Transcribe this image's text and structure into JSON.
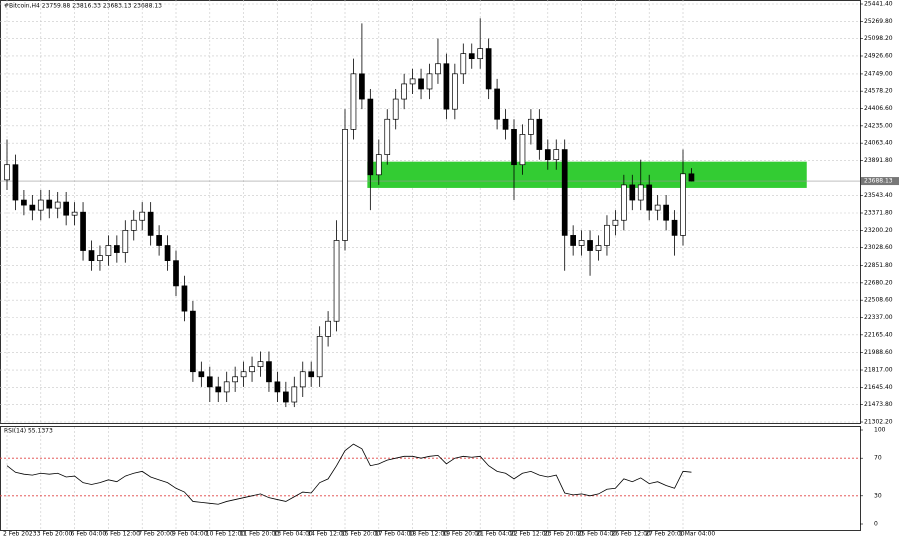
{
  "chart_data": [
    {
      "type": "candlestick",
      "title": "#Bitcoin,H4  23759.88 23816.33 23683.13 23688.13",
      "categories": [
        "2 Feb 2023",
        null,
        null,
        null,
        "3 Feb 20:00",
        null,
        null,
        null,
        "6 Feb 04:00",
        null,
        null,
        null,
        "6 Feb 12:00",
        null,
        null,
        null,
        "7 Feb 20:00",
        null,
        null,
        null,
        "9 Feb 04:00",
        null,
        null,
        null,
        "10 Feb 12:00",
        null,
        null,
        null,
        "11 Feb 20:00",
        null,
        null,
        null,
        "13 Feb 04:00",
        null,
        null,
        null,
        "14 Feb 12:00",
        null,
        null,
        null,
        "15 Feb 20:00",
        null,
        null,
        null,
        "17 Feb 04:00",
        null,
        null,
        null,
        "18 Feb 12:00",
        null,
        null,
        null,
        "19 Feb 20:00",
        null,
        null,
        null,
        "21 Feb 04:00",
        null,
        null,
        null,
        "22 Feb 12:00",
        null,
        null,
        null,
        "23 Feb 20:00",
        null,
        null,
        null,
        "25 Feb 04:00",
        null,
        null,
        null,
        "26 Feb 12:00",
        null,
        null,
        null,
        "27 Feb 20:00",
        null,
        null,
        null,
        "1 Mar 04:00",
        null
      ],
      "open": [
        23700,
        23850,
        23500,
        23450,
        23400,
        23500,
        23420,
        23480,
        23350,
        23380,
        23000,
        22900,
        22950,
        23050,
        22980,
        23200,
        23300,
        23380,
        23150,
        23050,
        22900,
        22650,
        22400,
        21800,
        21750,
        21650,
        21600,
        21700,
        21750,
        21800,
        21850,
        21900,
        21700,
        21600,
        21500,
        21650,
        21800,
        21750,
        22150,
        22300,
        23100,
        24200,
        24750,
        24500,
        23750,
        23950,
        24300,
        24500,
        24650,
        24700,
        24600,
        24750,
        24850,
        24400,
        24750,
        24950,
        24900,
        25000,
        24600,
        24300,
        24200,
        23850,
        24150,
        24300,
        24000,
        23900,
        24000,
        23150,
        23050,
        23100,
        23000,
        23050,
        23250,
        23300,
        23650,
        23500,
        23650,
        23400,
        23450,
        23300,
        23150,
        23759.88
      ],
      "high": [
        24100,
        23950,
        23600,
        23550,
        23600,
        23600,
        23580,
        23580,
        23480,
        23480,
        23100,
        23050,
        23150,
        23150,
        23300,
        23400,
        23480,
        23480,
        23250,
        23150,
        23000,
        22750,
        22500,
        21900,
        21850,
        21750,
        21800,
        21850,
        21900,
        21950,
        22000,
        22000,
        21800,
        21700,
        21750,
        21900,
        21900,
        22250,
        22400,
        23300,
        24400,
        24900,
        25250,
        24600,
        24100,
        24400,
        24600,
        24750,
        24800,
        24800,
        24850,
        25100,
        24950,
        24850,
        25050,
        25050,
        25300,
        25100,
        24700,
        24400,
        24300,
        24250,
        24400,
        24400,
        24100,
        24100,
        24100,
        23250,
        23200,
        23200,
        23150,
        23350,
        23400,
        23750,
        23750,
        23900,
        23750,
        23550,
        23550,
        23400,
        24000,
        23816.33
      ],
      "low": [
        23600,
        23400,
        23350,
        23300,
        23300,
        23320,
        23320,
        23250,
        23250,
        22900,
        22800,
        22800,
        22850,
        22880,
        22880,
        23100,
        23200,
        23050,
        22950,
        22800,
        22550,
        22300,
        21700,
        21650,
        21500,
        21500,
        21500,
        21600,
        21650,
        21700,
        21750,
        21600,
        21500,
        21450,
        21450,
        21550,
        21650,
        21650,
        22050,
        22200,
        23000,
        24100,
        24400,
        23400,
        23650,
        23850,
        24200,
        24400,
        24550,
        24500,
        24500,
        24650,
        24300,
        24300,
        24650,
        24800,
        24800,
        24500,
        24200,
        24100,
        23500,
        23750,
        24050,
        23900,
        23800,
        23800,
        22800,
        22950,
        22950,
        22750,
        22900,
        22950,
        23150,
        23200,
        23400,
        23400,
        23300,
        23300,
        23200,
        22950,
        23050,
        23683.13
      ],
      "close": [
        23850,
        23500,
        23450,
        23400,
        23500,
        23420,
        23480,
        23350,
        23380,
        23000,
        22900,
        22950,
        23050,
        22980,
        23200,
        23300,
        23380,
        23150,
        23050,
        22900,
        22650,
        22400,
        21800,
        21750,
        21650,
        21600,
        21700,
        21750,
        21800,
        21850,
        21900,
        21700,
        21600,
        21500,
        21650,
        21800,
        21750,
        22150,
        22300,
        23100,
        24200,
        24750,
        24500,
        23750,
        23950,
        24300,
        24500,
        24650,
        24700,
        24600,
        24750,
        24850,
        24400,
        24750,
        24950,
        24900,
        25000,
        24600,
        24300,
        24200,
        23850,
        24150,
        24300,
        24000,
        23900,
        24000,
        23150,
        23050,
        23100,
        23000,
        23050,
        23250,
        23300,
        23650,
        23500,
        23650,
        23400,
        23450,
        23300,
        23150,
        23760,
        23688.13
      ],
      "ylim": [
        21302.2,
        25441.4
      ],
      "yticks": [
        {
          "value": 21302.2,
          "label": "21302.20"
        },
        {
          "value": 21473.8,
          "label": "21473.80"
        },
        {
          "value": 21645.4,
          "label": "21645.40"
        },
        {
          "value": 21817,
          "label": "21817.00"
        },
        {
          "value": 21988.6,
          "label": "21988.60"
        },
        {
          "value": 22165.4,
          "label": "22165.40"
        },
        {
          "value": 22337,
          "label": "22337.00"
        },
        {
          "value": 22508.6,
          "label": "22508.60"
        },
        {
          "value": 22680.2,
          "label": "22680.20"
        },
        {
          "value": 22851.8,
          "label": "22851.80"
        },
        {
          "value": 23028.6,
          "label": "23028.60"
        },
        {
          "value": 23200.2,
          "label": "23200.20"
        },
        {
          "value": 23371.8,
          "label": "23371.80"
        },
        {
          "value": 23543.4,
          "label": "23543.40"
        },
        {
          "value": 23891.8,
          "label": "23891.80"
        },
        {
          "value": 24063.4,
          "label": "24063.40"
        },
        {
          "value": 24235,
          "label": "24235.00"
        },
        {
          "value": 24406.6,
          "label": "24406.60"
        },
        {
          "value": 24578.2,
          "label": "24578.20"
        },
        {
          "value": 24749,
          "label": "24749.00"
        },
        {
          "value": 24926.6,
          "label": "24926.60"
        },
        {
          "value": 25098.2,
          "label": "25098.20"
        },
        {
          "value": 25269.8,
          "label": "25269.80"
        },
        {
          "value": 25441.4,
          "label": "25441.40"
        }
      ],
      "zone": {
        "low": 23620,
        "high": 23880,
        "color": "#33cc33",
        "x": [
          43,
          95
        ]
      },
      "up_color": "#ffffff",
      "down_color": "#000000",
      "grid": true
    },
    {
      "type": "line",
      "title": "RSI(14) 55.1373",
      "values": [
        62,
        55,
        53,
        52,
        54,
        53,
        54,
        50,
        51,
        44,
        42,
        44,
        47,
        45,
        51,
        54,
        56,
        50,
        47,
        44,
        38,
        34,
        24,
        23,
        22,
        21,
        24,
        26,
        28,
        30,
        32,
        28,
        26,
        24,
        29,
        34,
        33,
        44,
        48,
        62,
        78,
        85,
        80,
        62,
        64,
        68,
        70,
        72,
        72,
        70,
        72,
        73,
        64,
        70,
        72,
        71,
        72,
        62,
        56,
        54,
        48,
        54,
        56,
        52,
        50,
        52,
        33,
        31,
        32,
        30,
        32,
        37,
        38,
        48,
        45,
        49,
        43,
        45,
        41,
        38,
        56,
        55.1373
      ],
      "ylim": [
        0,
        100
      ],
      "yticks": [
        0,
        30,
        70,
        100
      ],
      "levels": [
        30,
        70
      ],
      "level_color": "#e04040",
      "color": "#000000"
    }
  ]
}
